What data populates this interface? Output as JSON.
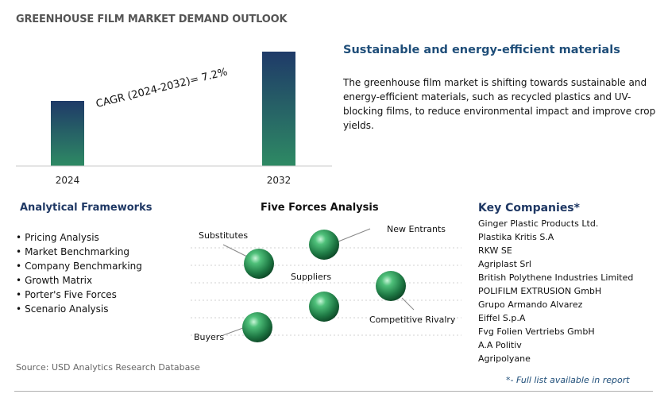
{
  "header": {
    "title": "GREENHOUSE FILM MARKET DEMAND OUTLOOK"
  },
  "chart_data": {
    "type": "bar",
    "categories": [
      "2024",
      "2032"
    ],
    "values": [
      82,
      144
    ],
    "title": "GREENHOUSE FILM MARKET DEMAND OUTLOOK",
    "annotation": "CAGR (2024-2032)=   7.2%",
    "colors": {
      "bar_top": "#1f3a68",
      "bar_bottom": "#2e8a64",
      "axis": "#c8c8c8"
    }
  },
  "highlight": {
    "title": "Sustainable and energy-efficient materials",
    "text": "The greenhouse film market is shifting towards sustainable and energy-efficient materials, such as recycled plastics and UV-blocking films, to reduce environmental impact and improve crop yields."
  },
  "frameworks": {
    "title": "Analytical Frameworks",
    "items": [
      "Pricing Analysis",
      "Market Benchmarking",
      "Company Benchmarking",
      "Growth Matrix",
      "Porter's Five Forces",
      "Scenario Analysis"
    ]
  },
  "five_forces": {
    "title": "Five Forces Analysis",
    "labels": {
      "substitutes": "Substitutes",
      "new_entrants": "New Entrants",
      "suppliers": "Suppliers",
      "competitive_rivalry": "Competitive Rivalry",
      "buyers": "Buyers"
    }
  },
  "companies": {
    "title": "Key Companies*",
    "items": [
      "Ginger Plastic Products Ltd.",
      "Plastika Kritis S.A",
      "RKW SE",
      "Agriplast Srl",
      "British Polythene Industries Limited",
      "POLIFILM EXTRUSION GmbH",
      "Grupo Armando Alvarez",
      "Eiffel S.p.A",
      "Fvg Folien Vertriebs GmbH",
      "A.A Politiv",
      "Agripolyane"
    ],
    "footnote": "*- Full list available in report"
  },
  "source": "Source: USD Analytics Research Database"
}
